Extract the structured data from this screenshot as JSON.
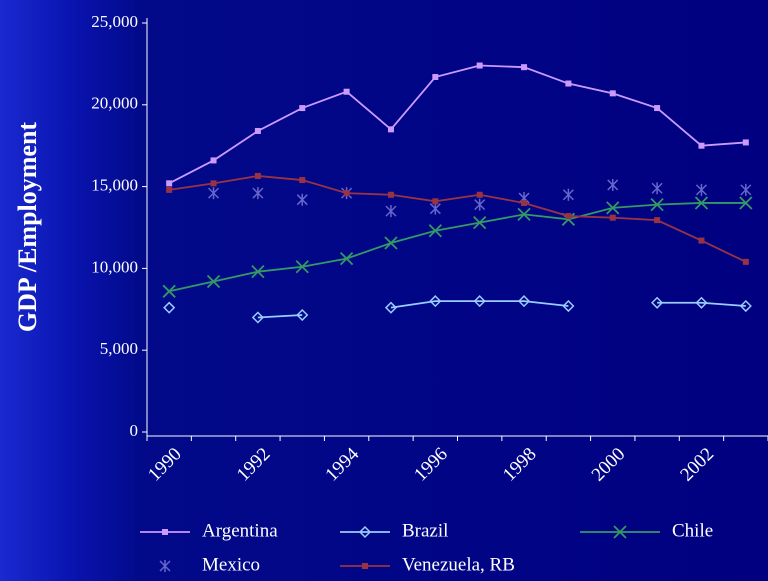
{
  "chart_data": {
    "type": "line",
    "y_label": "GDP /Employment",
    "categories": [
      "1990",
      null,
      "1992",
      null,
      "1994",
      null,
      "1996",
      null,
      "1998",
      null,
      "2000",
      null,
      "2002",
      null
    ],
    "ylim": [
      0,
      25000
    ],
    "yticks": [
      0,
      {
        "value": 5000,
        "label": "5,000"
      },
      {
        "value": 10000,
        "label": "10,000"
      },
      {
        "value": 15000,
        "label": "15,000"
      },
      {
        "value": 20000,
        "label": "20,000"
      },
      {
        "value": 25000,
        "label": "25,000"
      }
    ],
    "series": [
      {
        "name": "Argentina",
        "color": "#cc99ff",
        "marker": "square",
        "line": true,
        "values": [
          15200,
          16600,
          18400,
          19800,
          20800,
          18500,
          21700,
          22400,
          22300,
          21300,
          20700,
          19800,
          17500,
          17700
        ]
      },
      {
        "name": "Brazil",
        "color": "#99ccff",
        "marker": "diamond",
        "line": true,
        "values": [
          7600,
          null,
          7000,
          7150,
          null,
          7600,
          8000,
          8000,
          8000,
          7700,
          null,
          7900,
          7900,
          7700
        ]
      },
      {
        "name": "Chile",
        "color": "#339966",
        "marker": "x",
        "line": true,
        "values": [
          8600,
          9200,
          9800,
          10100,
          10600,
          11550,
          12300,
          12800,
          13300,
          13000,
          13700,
          13900,
          14000,
          14000
        ]
      },
      {
        "name": "Mexico",
        "color": "#6666cc",
        "marker": "asterisk",
        "line": false,
        "values": [
          null,
          14600,
          14600,
          14200,
          14600,
          13500,
          13650,
          13900,
          14300,
          14500,
          15100,
          14900,
          14800,
          14800
        ]
      },
      {
        "name": "Venezuela, RB",
        "color": "#993344",
        "marker": "square",
        "line": true,
        "values": [
          14800,
          15200,
          15650,
          15400,
          14600,
          14500,
          14100,
          14500,
          14000,
          13200,
          13100,
          12950,
          11700,
          10400
        ]
      }
    ]
  }
}
